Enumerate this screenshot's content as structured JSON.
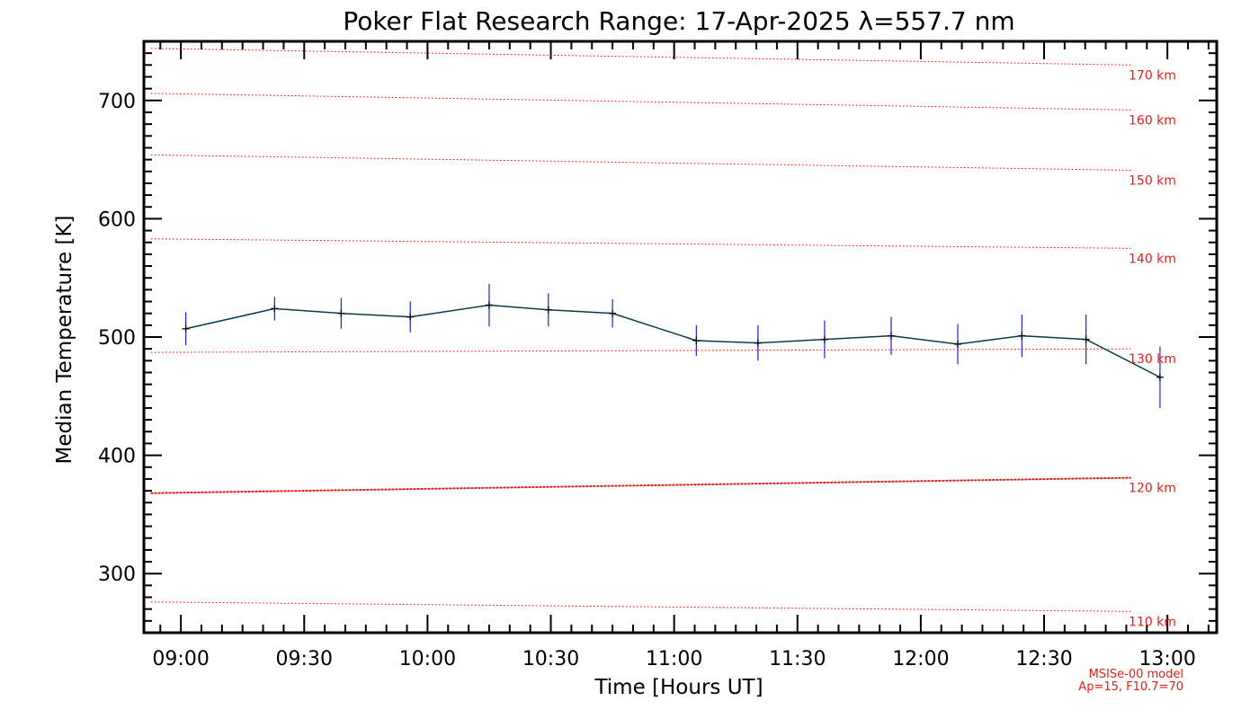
{
  "chart_data": {
    "type": "line",
    "title": "Poker Flat Research Range: 17-Apr-2025 λ=557.7 nm",
    "xlabel": "Time [Hours UT]",
    "ylabel": "Median Temperature [K]",
    "xlim_hours": [
      8.85,
      13.2
    ],
    "ylim": [
      250,
      750
    ],
    "x_ticks": [
      {
        "value": 9.0,
        "label": "09:00"
      },
      {
        "value": 9.5,
        "label": "09:30"
      },
      {
        "value": 10.0,
        "label": "10:00"
      },
      {
        "value": 10.5,
        "label": "10:30"
      },
      {
        "value": 11.0,
        "label": "11:00"
      },
      {
        "value": 11.5,
        "label": "11:30"
      },
      {
        "value": 12.0,
        "label": "12:00"
      },
      {
        "value": 12.5,
        "label": "12:30"
      },
      {
        "value": 13.0,
        "label": "13:00"
      }
    ],
    "y_ticks": [
      300,
      400,
      500,
      600,
      700
    ],
    "colors": {
      "line": "#0b3a4a",
      "error_bar": "#1f1fe0",
      "marker": "#000000",
      "model": "#e0201c"
    },
    "series": [
      {
        "x_hours": [
          9.02,
          9.38,
          9.65,
          9.93,
          10.25,
          10.49,
          10.75,
          11.09,
          11.34,
          11.61,
          11.88,
          12.15,
          12.41,
          12.67,
          12.97
        ],
        "time_labels": [
          "09:01",
          "09:23",
          "09:39",
          "09:56",
          "10:15",
          "10:29",
          "10:45",
          "11:05",
          "11:20",
          "11:37",
          "11:53",
          "12:09",
          "12:25",
          "12:40",
          "12:58"
        ],
        "values": [
          507,
          524,
          520,
          517,
          527,
          523,
          520,
          497,
          495,
          498,
          501,
          494,
          501,
          498,
          466
        ],
        "errors": [
          14,
          10,
          13,
          13,
          18,
          14,
          12,
          13,
          15,
          16,
          16,
          17,
          18,
          21,
          26
        ]
      }
    ],
    "model_curves": [
      {
        "label": "110 km",
        "start": 276,
        "end": 268,
        "emphasized": false
      },
      {
        "label": "120 km",
        "start": 368,
        "end": 381,
        "emphasized": true
      },
      {
        "label": "130 km",
        "start": 487,
        "end": 490,
        "emphasized": false
      },
      {
        "label": "140 km",
        "start": 583,
        "end": 575,
        "emphasized": false
      },
      {
        "label": "150 km",
        "start": 654,
        "end": 641,
        "emphasized": false
      },
      {
        "label": "160 km",
        "start": 706,
        "end": 692,
        "emphasized": false
      },
      {
        "label": "170 km",
        "start": 744,
        "end": 730,
        "emphasized": false
      }
    ],
    "model_note": [
      "MSISe-00 model",
      "Ap=15, F10.7=70"
    ]
  }
}
